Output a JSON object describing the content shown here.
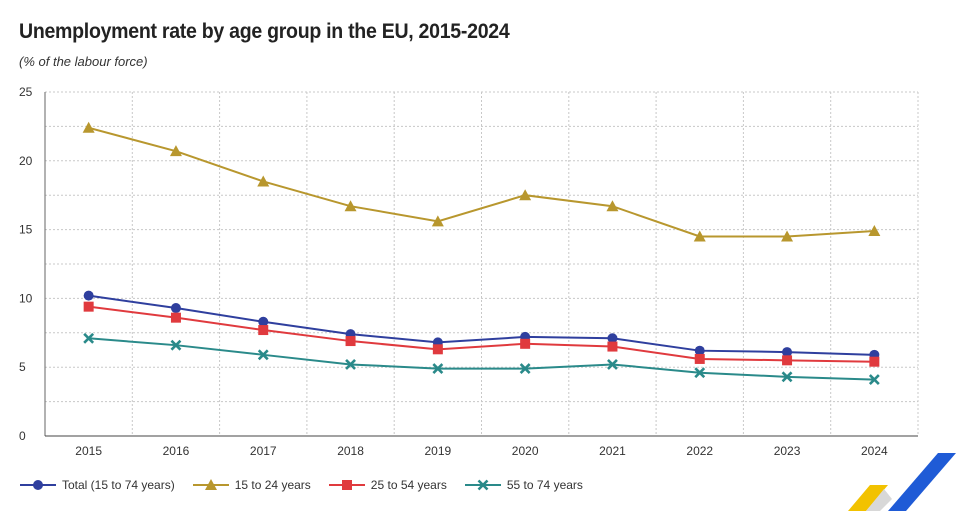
{
  "chart_data": {
    "type": "line",
    "title": "Unemployment rate by age group in the EU, 2015-2024",
    "subtitle": "(% of the labour force)",
    "xlabel": "",
    "ylabel": "",
    "categories": [
      "2015",
      "2016",
      "2017",
      "2018",
      "2019",
      "2020",
      "2021",
      "2022",
      "2023",
      "2024"
    ],
    "ylim": [
      0,
      25
    ],
    "yticks": [
      0,
      5,
      10,
      15,
      20,
      25
    ],
    "grid": true,
    "legend_position": "bottom-left",
    "series": [
      {
        "name": "Total (15 to 74 years)",
        "color": "#2f3f9e",
        "marker": "circle",
        "values": [
          10.2,
          9.3,
          8.3,
          7.4,
          6.8,
          7.2,
          7.1,
          6.2,
          6.1,
          5.9
        ]
      },
      {
        "name": "15 to 24 years",
        "color": "#b8972e",
        "marker": "triangle",
        "values": [
          22.4,
          20.7,
          18.5,
          16.7,
          15.6,
          17.5,
          16.7,
          14.5,
          14.5,
          14.9
        ]
      },
      {
        "name": "25 to 54 years",
        "color": "#e03a3e",
        "marker": "square",
        "values": [
          9.4,
          8.6,
          7.7,
          6.9,
          6.3,
          6.7,
          6.5,
          5.6,
          5.5,
          5.4
        ]
      },
      {
        "name": "55 to 74 years",
        "color": "#2a8a8a",
        "marker": "x",
        "values": [
          7.1,
          6.6,
          5.9,
          5.2,
          4.9,
          4.9,
          5.2,
          4.6,
          4.3,
          4.1
        ]
      }
    ]
  }
}
